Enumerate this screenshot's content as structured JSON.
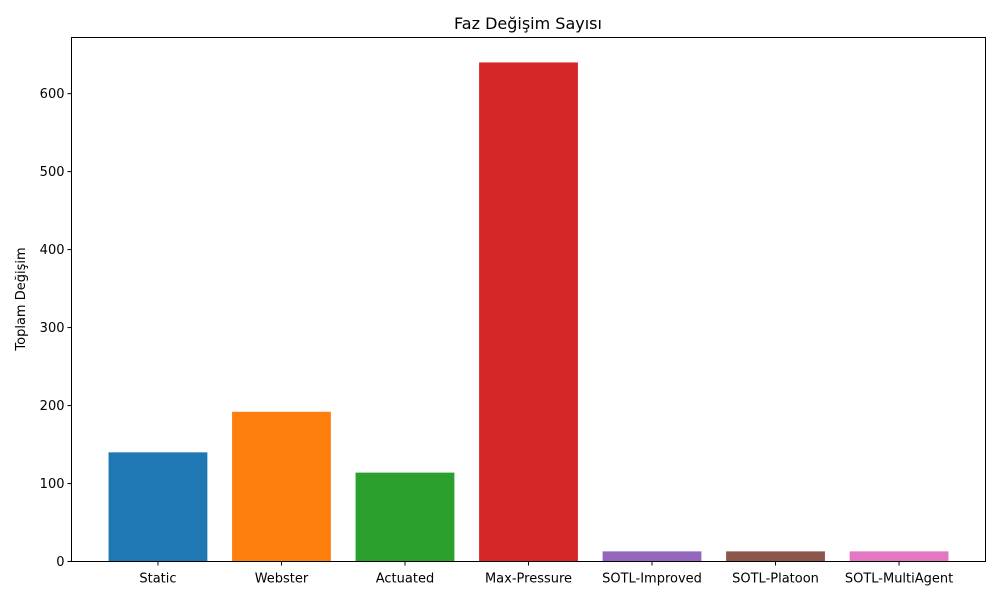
{
  "chart_data": {
    "type": "bar",
    "title": "Faz Değişim Sayısı",
    "xlabel": "",
    "ylabel": "Toplam Değişim",
    "categories": [
      "Static",
      "Webster",
      "Actuated",
      "Max-Pressure",
      "SOTL-Improved",
      "SOTL-Platoon",
      "SOTL-MultiAgent"
    ],
    "values": [
      140,
      192,
      114,
      640,
      13,
      13,
      13
    ],
    "colors": [
      "#1f77b4",
      "#ff7f0e",
      "#2ca02c",
      "#d62728",
      "#9467bd",
      "#8c564b",
      "#e377c2"
    ],
    "ylim": [
      0,
      672
    ],
    "yticks": [
      0,
      100,
      200,
      300,
      400,
      500,
      600
    ],
    "ytick_labels": [
      "0",
      "100",
      "200",
      "300",
      "400",
      "500",
      "600"
    ],
    "grid": false,
    "legend": "none"
  }
}
